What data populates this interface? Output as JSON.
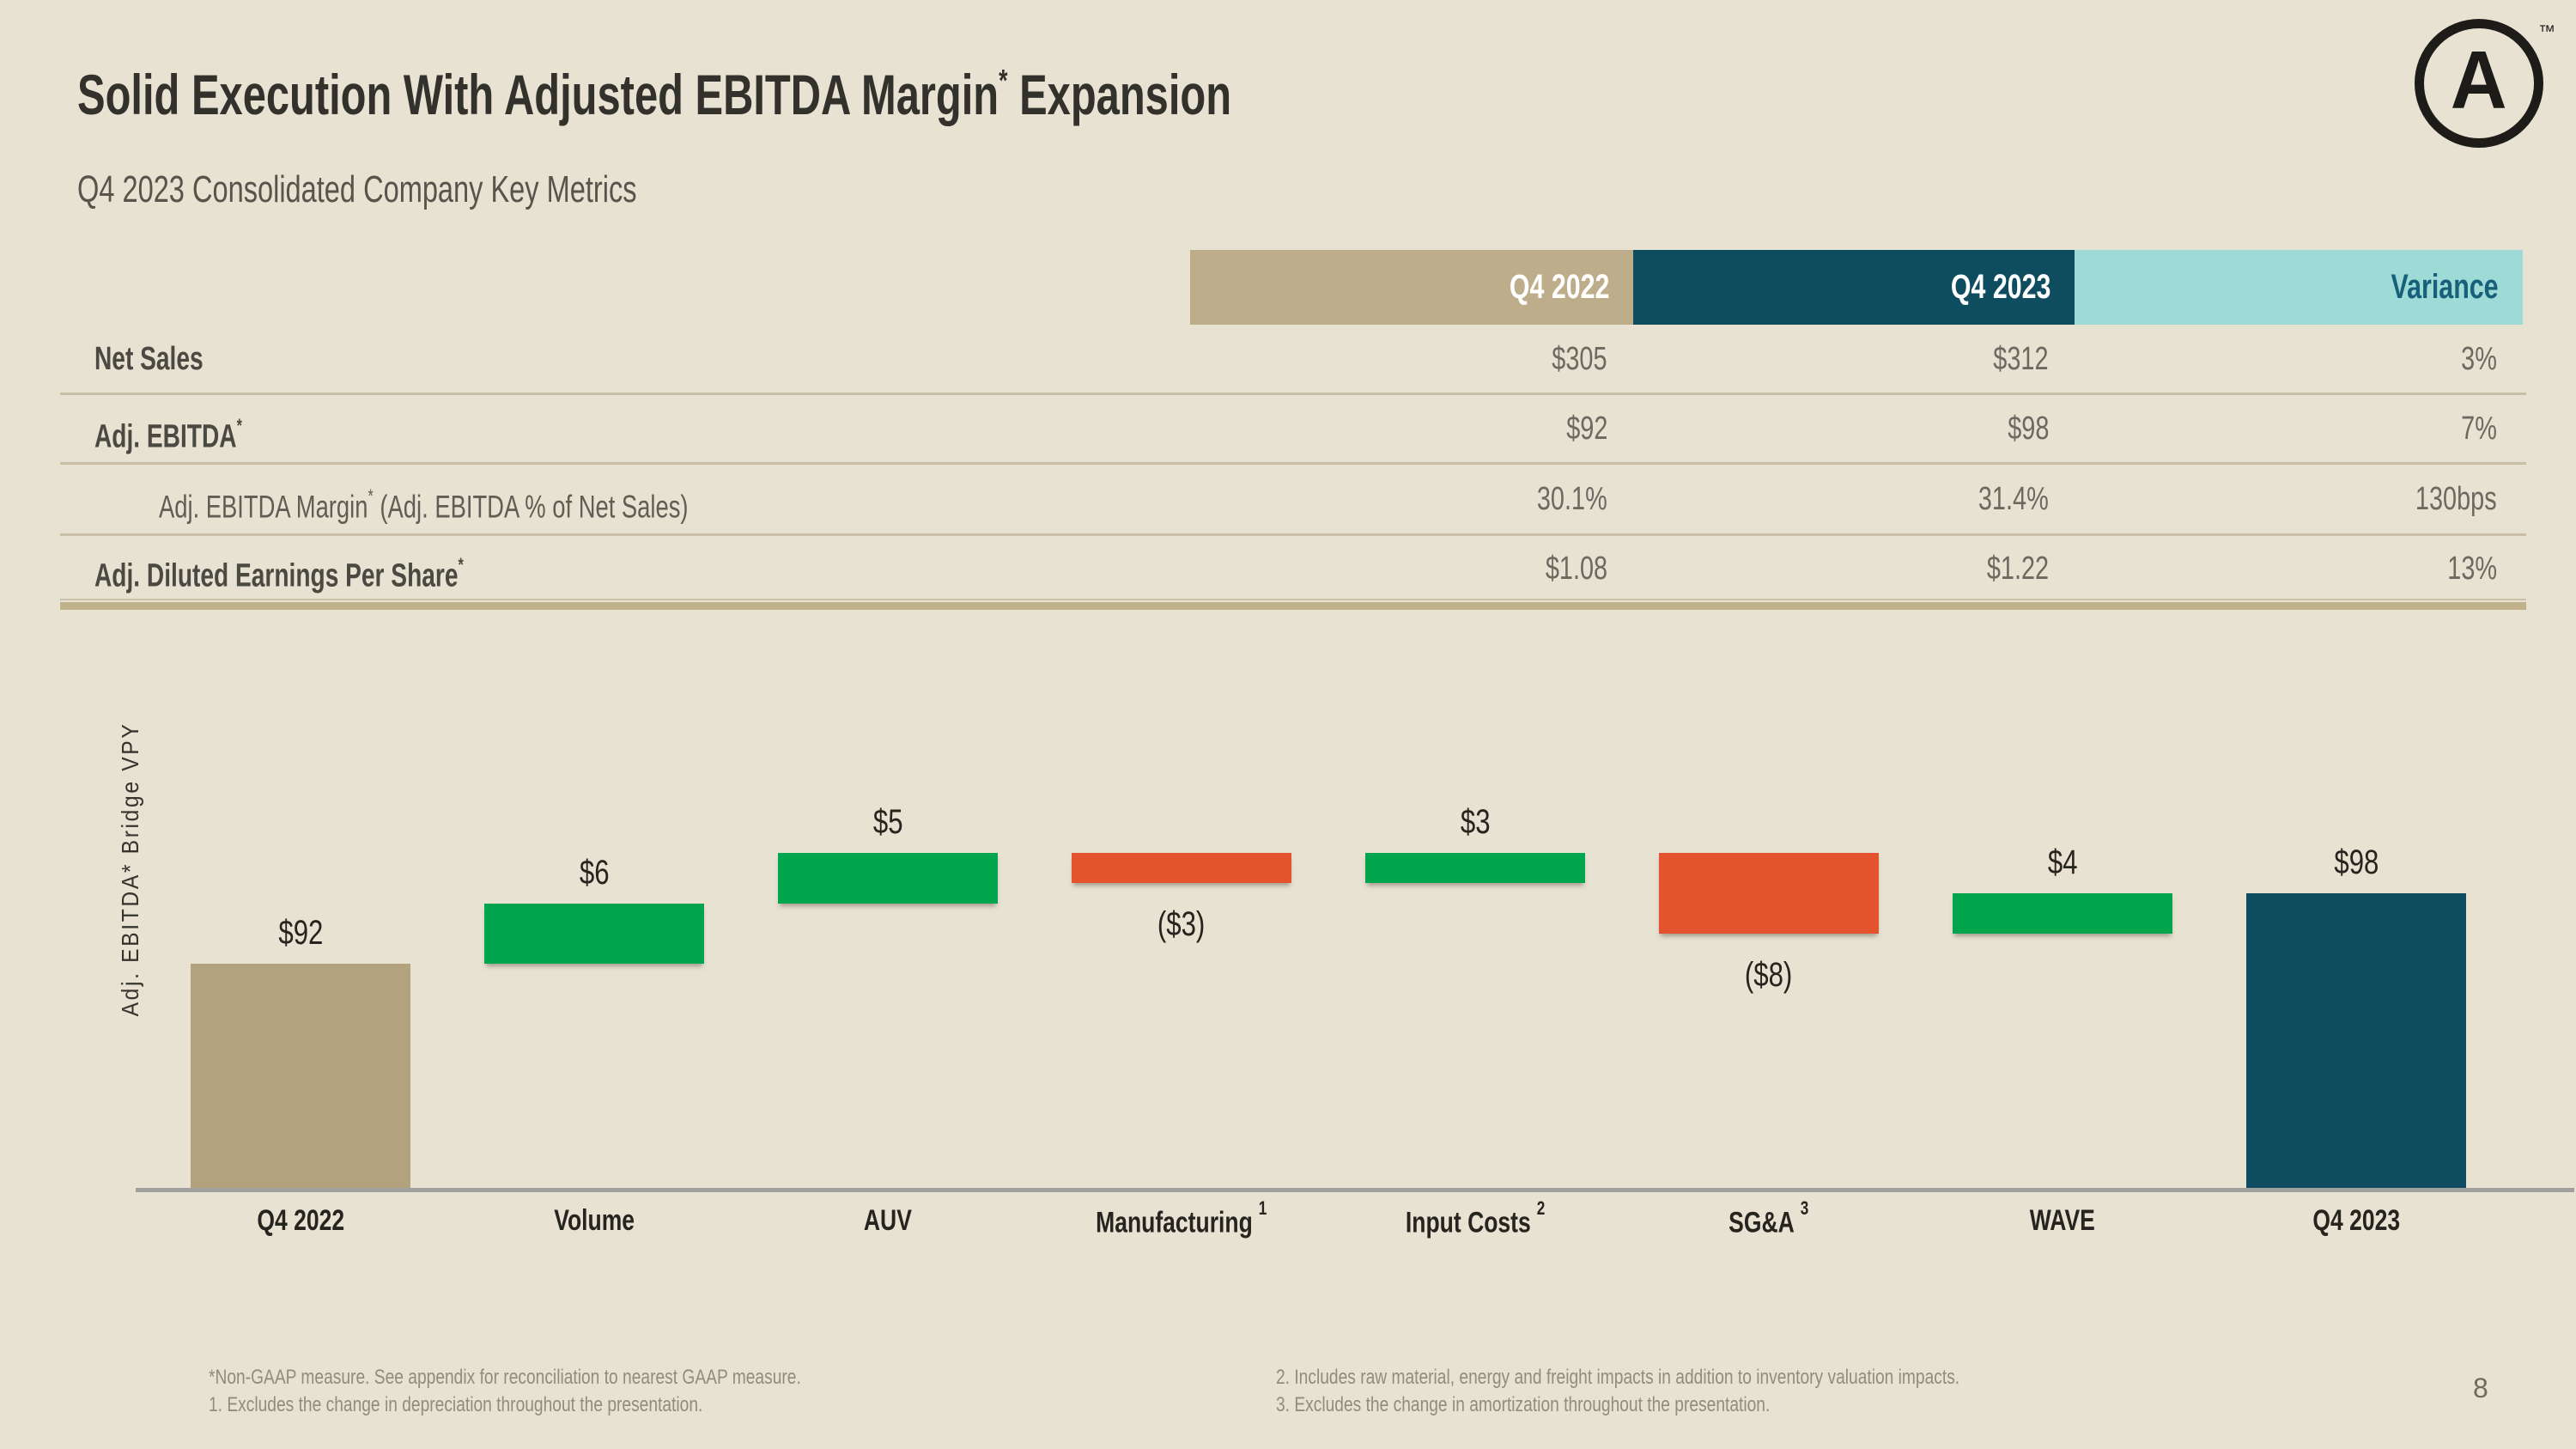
{
  "slide": {
    "title": {
      "pre": "Solid Execution With Adjusted EBITDA Margin",
      "sup": "*",
      "post": " Expansion"
    },
    "subtitle": "Q4 2023 Consolidated Company Key Metrics",
    "page_number": "8",
    "logo": {
      "letter": "A",
      "trademark": "™"
    }
  },
  "table": {
    "columns": [
      "Q4 2022",
      "Q4 2023",
      "Variance"
    ],
    "rows": [
      {
        "label": "Net Sales",
        "sup": "",
        "rest": "",
        "indent": false,
        "bold": true,
        "values": [
          "$305",
          "$312",
          "3%"
        ]
      },
      {
        "label": "Adj. EBITDA",
        "sup": "*",
        "rest": "",
        "indent": false,
        "bold": true,
        "values": [
          "$92",
          "$98",
          "7%"
        ]
      },
      {
        "label": "Adj. EBITDA Margin",
        "sup": "*",
        "rest": " (Adj. EBITDA % of Net Sales)",
        "indent": true,
        "bold": false,
        "values": [
          "30.1%",
          "31.4%",
          "130bps"
        ]
      },
      {
        "label": "Adj. Diluted Earnings Per Share",
        "sup": "*",
        "rest": "",
        "indent": false,
        "bold": true,
        "values": [
          "$1.08",
          "$1.22",
          "13%"
        ]
      }
    ]
  },
  "chart_data": {
    "type": "waterfall-bar",
    "ylabel": "Adj. EBITDA* Bridge VPY",
    "start_value": 92,
    "end_value": 98,
    "bars": [
      {
        "category": "Q4 2022",
        "sup": "",
        "kind": "start",
        "value": 92,
        "label": "$92"
      },
      {
        "category": "Volume",
        "sup": "",
        "kind": "increase",
        "value": 6,
        "label": "$6"
      },
      {
        "category": "AUV",
        "sup": "",
        "kind": "increase",
        "value": 5,
        "label": "$5"
      },
      {
        "category": "Manufacturing",
        "sup": "1",
        "kind": "decrease",
        "value": -3,
        "label": "($3)"
      },
      {
        "category": "Input Costs",
        "sup": "2",
        "kind": "increase",
        "value": 3,
        "label": "$3"
      },
      {
        "category": "SG&A",
        "sup": "3",
        "kind": "decrease",
        "value": -8,
        "label": "($8)"
      },
      {
        "category": "WAVE",
        "sup": "",
        "kind": "increase",
        "value": 4,
        "label": "$4"
      },
      {
        "category": "Q4 2023",
        "sup": "",
        "kind": "end",
        "value": 98,
        "label": "$98"
      }
    ],
    "layout_hints": {
      "legend": "none",
      "grid": "off",
      "delta_bars_not_to_scale": true
    }
  },
  "footnotes": {
    "left": [
      "*Non-GAAP measure. See appendix for reconciliation to nearest GAAP measure.",
      "1. Excludes the change in depreciation throughout the presentation."
    ],
    "right": [
      "2. Includes raw material, energy and freight impacts in addition to inventory valuation impacts.",
      "3. Excludes the change in amortization throughout the presentation."
    ]
  },
  "colors": {
    "background": "#e8e2d3",
    "tan_bar": "#b3a27e",
    "tan_header": "#bead8a",
    "teal_dark": "#0e4c5f",
    "teal_light": "#9edad6",
    "teal_text": "#17607a",
    "green": "#00a54d",
    "red": "#e4532d",
    "baseline_gray": "#a1a09c"
  }
}
